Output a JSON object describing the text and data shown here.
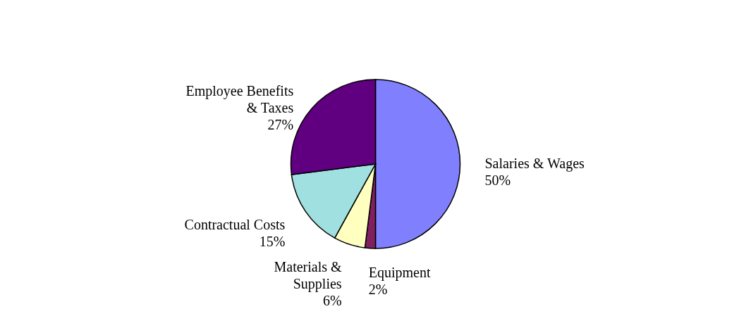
{
  "chart_data": {
    "type": "pie",
    "categories": [
      "Salaries & Wages",
      "Equipment",
      "Materials & Supplies",
      "Contractual Costs",
      "Employee Benefits & Taxes"
    ],
    "values": [
      50,
      2,
      6,
      15,
      27
    ],
    "colors": [
      "#8080ff",
      "#802060",
      "#ffffc0",
      "#a0e0e0",
      "#600080"
    ],
    "value_labels": [
      "50%",
      "2%",
      "6%",
      "15%",
      "27%"
    ]
  }
}
